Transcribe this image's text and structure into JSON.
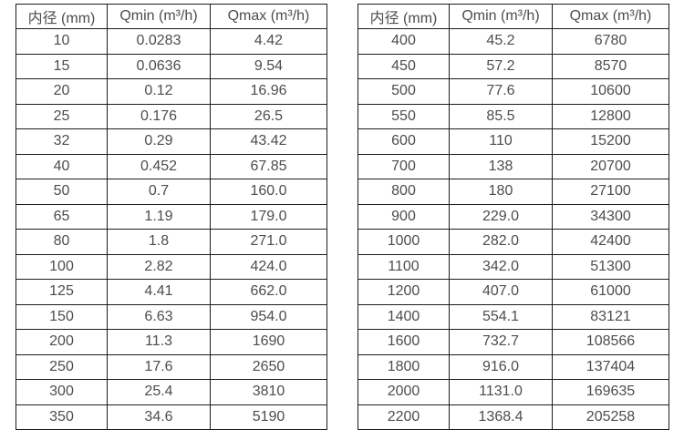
{
  "colors": {
    "border": "#1c1c1c",
    "text": "#4d4d4d",
    "background": "#ffffff"
  },
  "left_table": {
    "headers": [
      "内径 (mm)",
      "Qmin (m³/h)",
      "Qmax (m³/h)"
    ],
    "rows": [
      [
        "10",
        "0.0283",
        "4.42"
      ],
      [
        "15",
        "0.0636",
        "9.54"
      ],
      [
        "20",
        "0.12",
        "16.96"
      ],
      [
        "25",
        "0.176",
        "26.5"
      ],
      [
        "32",
        "0.29",
        "43.42"
      ],
      [
        "40",
        "0.452",
        "67.85"
      ],
      [
        "50",
        "0.7",
        "160.0"
      ],
      [
        "65",
        "1.19",
        "179.0"
      ],
      [
        "80",
        "1.8",
        "271.0"
      ],
      [
        "100",
        "2.82",
        "424.0"
      ],
      [
        "125",
        "4.41",
        "662.0"
      ],
      [
        "150",
        "6.63",
        "954.0"
      ],
      [
        "200",
        "11.3",
        "1690"
      ],
      [
        "250",
        "17.6",
        "2650"
      ],
      [
        "300",
        "25.4",
        "3810"
      ],
      [
        "350",
        "34.6",
        "5190"
      ]
    ]
  },
  "right_table": {
    "headers": [
      "内径 (mm)",
      "Qmin (m³/h)",
      "Qmax (m³/h)"
    ],
    "rows": [
      [
        "400",
        "45.2",
        "6780"
      ],
      [
        "450",
        "57.2",
        "8570"
      ],
      [
        "500",
        "77.6",
        "10600"
      ],
      [
        "550",
        "85.5",
        "12800"
      ],
      [
        "600",
        "110",
        "15200"
      ],
      [
        "700",
        "138",
        "20700"
      ],
      [
        "800",
        "180",
        "27100"
      ],
      [
        "900",
        "229.0",
        "34300"
      ],
      [
        "1000",
        "282.0",
        "42400"
      ],
      [
        "1100",
        "342.0",
        "51300"
      ],
      [
        "1200",
        "407.0",
        "61000"
      ],
      [
        "1400",
        "554.1",
        "83121"
      ],
      [
        "1600",
        "732.7",
        "108566"
      ],
      [
        "1800",
        "916.0",
        "137404"
      ],
      [
        "2000",
        "1131.0",
        "169635"
      ],
      [
        "2200",
        "1368.4",
        "205258"
      ]
    ]
  }
}
